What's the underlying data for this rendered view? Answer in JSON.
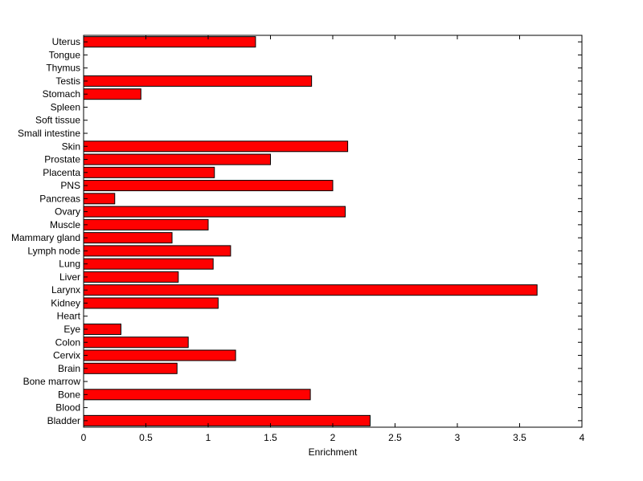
{
  "chart_data": {
    "type": "bar",
    "orientation": "horizontal",
    "title": "",
    "xlabel": "Enrichment",
    "ylabel": "",
    "xlim": [
      0,
      4
    ],
    "xticks": [
      0,
      0.5,
      1,
      1.5,
      2,
      2.5,
      3,
      3.5,
      4
    ],
    "xtick_labels": [
      "0",
      "0.5",
      "1",
      "1.5",
      "2",
      "2.5",
      "3",
      "3.5",
      "4"
    ],
    "grid": false,
    "legend": "none",
    "bar_color": "#ff0000",
    "categories": [
      "Bladder",
      "Blood",
      "Bone",
      "Bone marrow",
      "Brain",
      "Cervix",
      "Colon",
      "Eye",
      "Heart",
      "Kidney",
      "Larynx",
      "Liver",
      "Lung",
      "Lymph node",
      "Mammary gland",
      "Muscle",
      "Ovary",
      "Pancreas",
      "PNS",
      "Placenta",
      "Prostate",
      "Skin",
      "Small intestine",
      "Soft tissue",
      "Spleen",
      "Stomach",
      "Testis",
      "Thymus",
      "Tongue",
      "Uterus"
    ],
    "values": [
      2.3,
      0,
      1.82,
      0,
      0.75,
      1.22,
      0.84,
      0.3,
      0,
      1.08,
      3.64,
      0.76,
      1.04,
      1.18,
      0.71,
      1.0,
      2.1,
      0.25,
      2.0,
      1.05,
      1.5,
      2.12,
      0,
      0,
      0,
      0.46,
      1.83,
      0,
      0,
      1.38
    ]
  }
}
